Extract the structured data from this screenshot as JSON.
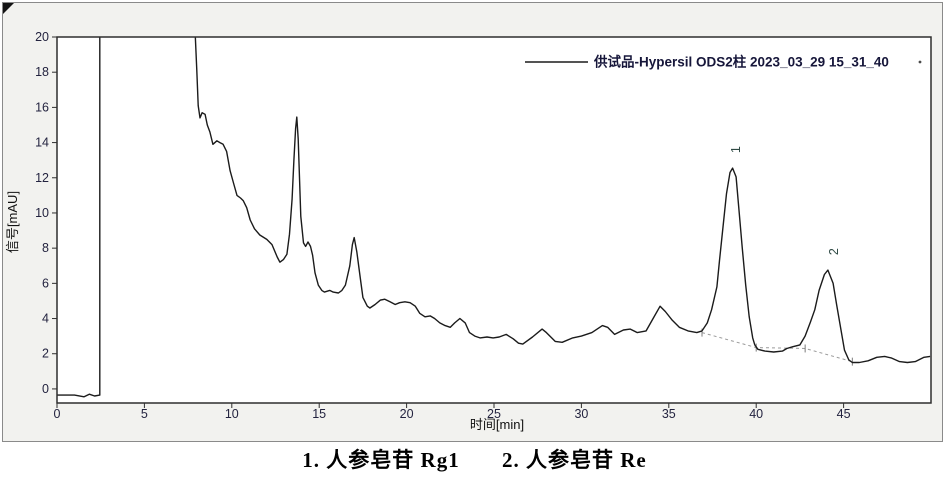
{
  "colors": {
    "panel_bg": "#f2f2ef",
    "plot_bg": "#ffffff",
    "frame": "#2e2e2e",
    "trace": "#1b1b1b",
    "tick_text": "#23233f",
    "axis_title": "#111111",
    "legend_text": "#16163a",
    "peak_label": "#2f4a44",
    "integration_baseline": "#9a9a9a"
  },
  "chart_data": {
    "type": "line",
    "title": "",
    "xlabel": "时间[min]",
    "ylabel": "信号[mAU]",
    "x_range": [
      0,
      50
    ],
    "y_range": [
      -0.8,
      20
    ],
    "x_ticks": [
      0,
      5,
      10,
      15,
      20,
      25,
      30,
      35,
      40,
      45
    ],
    "y_ticks": [
      0,
      2,
      4,
      6,
      8,
      10,
      12,
      14,
      16,
      18,
      20
    ],
    "grid": false,
    "legend": {
      "label": "供试品-Hypersil ODS2柱 2023_03_29 15_31_40",
      "position": "top-right"
    },
    "series": [
      {
        "name": "供试品-Hypersil ODS2柱 2023_03_29 15_31_40",
        "points": [
          [
            0,
            -0.35
          ],
          [
            1.0,
            -0.35
          ],
          [
            1.55,
            -0.45
          ],
          [
            1.85,
            -0.3
          ],
          [
            2.15,
            -0.4
          ],
          [
            2.45,
            -0.35
          ],
          [
            2.45,
            21
          ],
          [
            7.85,
            21
          ],
          [
            7.9,
            20.3
          ],
          [
            8.0,
            18.1
          ],
          [
            8.08,
            16.1
          ],
          [
            8.18,
            15.4
          ],
          [
            8.3,
            15.7
          ],
          [
            8.47,
            15.6
          ],
          [
            8.6,
            15.0
          ],
          [
            8.75,
            14.6
          ],
          [
            8.92,
            13.9
          ],
          [
            9.15,
            14.1
          ],
          [
            9.32,
            14.0
          ],
          [
            9.5,
            13.9
          ],
          [
            9.7,
            13.5
          ],
          [
            9.9,
            12.4
          ],
          [
            10.1,
            11.7
          ],
          [
            10.3,
            11.0
          ],
          [
            10.5,
            10.85
          ],
          [
            10.65,
            10.7
          ],
          [
            10.85,
            10.3
          ],
          [
            11.05,
            9.6
          ],
          [
            11.3,
            9.1
          ],
          [
            11.6,
            8.75
          ],
          [
            12.0,
            8.5
          ],
          [
            12.3,
            8.2
          ],
          [
            12.6,
            7.5
          ],
          [
            12.75,
            7.2
          ],
          [
            12.95,
            7.35
          ],
          [
            13.15,
            7.65
          ],
          [
            13.3,
            8.8
          ],
          [
            13.45,
            10.8
          ],
          [
            13.55,
            13.0
          ],
          [
            13.65,
            14.8
          ],
          [
            13.72,
            15.45
          ],
          [
            13.8,
            14.2
          ],
          [
            13.95,
            9.8
          ],
          [
            14.1,
            8.3
          ],
          [
            14.22,
            8.1
          ],
          [
            14.36,
            8.35
          ],
          [
            14.5,
            8.1
          ],
          [
            14.62,
            7.6
          ],
          [
            14.76,
            6.6
          ],
          [
            14.95,
            5.9
          ],
          [
            15.15,
            5.6
          ],
          [
            15.3,
            5.5
          ],
          [
            15.6,
            5.6
          ],
          [
            15.8,
            5.5
          ],
          [
            16.1,
            5.45
          ],
          [
            16.3,
            5.6
          ],
          [
            16.5,
            5.9
          ],
          [
            16.75,
            7.0
          ],
          [
            16.9,
            8.2
          ],
          [
            17.0,
            8.6
          ],
          [
            17.15,
            7.8
          ],
          [
            17.35,
            6.3
          ],
          [
            17.5,
            5.2
          ],
          [
            17.75,
            4.7
          ],
          [
            17.9,
            4.6
          ],
          [
            18.2,
            4.8
          ],
          [
            18.5,
            5.05
          ],
          [
            18.75,
            5.1
          ],
          [
            19.05,
            4.95
          ],
          [
            19.35,
            4.8
          ],
          [
            19.6,
            4.9
          ],
          [
            19.9,
            4.95
          ],
          [
            20.2,
            4.9
          ],
          [
            20.5,
            4.7
          ],
          [
            20.75,
            4.3
          ],
          [
            21.05,
            4.1
          ],
          [
            21.35,
            4.15
          ],
          [
            21.6,
            4.0
          ],
          [
            21.9,
            3.75
          ],
          [
            22.2,
            3.6
          ],
          [
            22.5,
            3.5
          ],
          [
            22.75,
            3.75
          ],
          [
            23.05,
            4.0
          ],
          [
            23.35,
            3.75
          ],
          [
            23.6,
            3.2
          ],
          [
            23.9,
            3.0
          ],
          [
            24.2,
            2.9
          ],
          [
            24.6,
            2.95
          ],
          [
            24.95,
            2.9
          ],
          [
            25.3,
            2.95
          ],
          [
            25.7,
            3.1
          ],
          [
            26.1,
            2.85
          ],
          [
            26.4,
            2.6
          ],
          [
            26.65,
            2.55
          ],
          [
            27.2,
            2.95
          ],
          [
            27.75,
            3.4
          ],
          [
            28.0,
            3.2
          ],
          [
            28.5,
            2.7
          ],
          [
            28.9,
            2.65
          ],
          [
            29.5,
            2.9
          ],
          [
            30.0,
            3.0
          ],
          [
            30.6,
            3.2
          ],
          [
            31.2,
            3.6
          ],
          [
            31.5,
            3.5
          ],
          [
            31.9,
            3.1
          ],
          [
            32.4,
            3.35
          ],
          [
            32.8,
            3.4
          ],
          [
            33.2,
            3.2
          ],
          [
            33.7,
            3.3
          ],
          [
            34.1,
            4.0
          ],
          [
            34.5,
            4.7
          ],
          [
            34.8,
            4.4
          ],
          [
            35.2,
            3.9
          ],
          [
            35.6,
            3.5
          ],
          [
            36.1,
            3.3
          ],
          [
            36.6,
            3.2
          ],
          [
            36.9,
            3.3
          ],
          [
            37.2,
            3.75
          ],
          [
            37.45,
            4.5
          ],
          [
            37.75,
            5.8
          ],
          [
            37.9,
            7.3
          ],
          [
            38.1,
            9.2
          ],
          [
            38.3,
            11.1
          ],
          [
            38.5,
            12.3
          ],
          [
            38.65,
            12.55
          ],
          [
            38.85,
            12.05
          ],
          [
            39.0,
            10.35
          ],
          [
            39.2,
            8.05
          ],
          [
            39.4,
            5.9
          ],
          [
            39.6,
            4.1
          ],
          [
            39.8,
            2.9
          ],
          [
            39.92,
            2.5
          ],
          [
            40.1,
            2.25
          ],
          [
            40.5,
            2.15
          ],
          [
            41.0,
            2.1
          ],
          [
            41.5,
            2.15
          ],
          [
            41.75,
            2.3
          ],
          [
            42.1,
            2.4
          ],
          [
            42.5,
            2.5
          ],
          [
            42.8,
            3.0
          ],
          [
            43.1,
            3.8
          ],
          [
            43.35,
            4.5
          ],
          [
            43.6,
            5.6
          ],
          [
            43.9,
            6.5
          ],
          [
            44.1,
            6.75
          ],
          [
            44.4,
            6.0
          ],
          [
            44.6,
            4.8
          ],
          [
            44.85,
            3.35
          ],
          [
            45.05,
            2.2
          ],
          [
            45.3,
            1.65
          ],
          [
            45.5,
            1.5
          ],
          [
            45.9,
            1.5
          ],
          [
            46.4,
            1.6
          ],
          [
            46.9,
            1.8
          ],
          [
            47.35,
            1.85
          ],
          [
            47.75,
            1.75
          ],
          [
            48.2,
            1.55
          ],
          [
            48.65,
            1.5
          ],
          [
            49.1,
            1.55
          ],
          [
            49.6,
            1.8
          ],
          [
            49.95,
            1.85
          ]
        ]
      }
    ],
    "integration_baseline": {
      "points": [
        [
          36.9,
          3.2
        ],
        [
          40.0,
          2.35
        ],
        [
          42.8,
          2.3
        ],
        [
          45.5,
          1.55
        ]
      ]
    },
    "peak_labels": [
      {
        "label": "1",
        "t": 39.07,
        "v": 13.6
      },
      {
        "label": "2",
        "t": 44.68,
        "v": 7.8
      }
    ]
  },
  "caption": {
    "items": [
      "1.  人参皂苷 Rg1",
      "2.  人参皂苷 Re"
    ]
  }
}
